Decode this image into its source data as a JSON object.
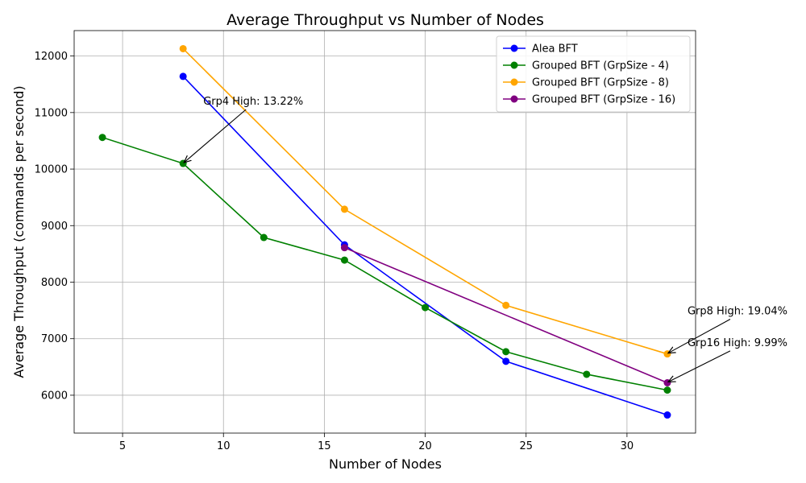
{
  "chart_data": {
    "type": "line",
    "title": "Average Throughput vs Number of Nodes",
    "xlabel": "Number of Nodes",
    "ylabel": "Average Throughput (commands per second)",
    "xlim": [
      2.6,
      33.4
    ],
    "ylim": [
      5330,
      12450
    ],
    "xticks": [
      5,
      10,
      15,
      20,
      25,
      30
    ],
    "yticks": [
      6000,
      7000,
      8000,
      9000,
      10000,
      11000,
      12000
    ],
    "grid": true,
    "legend_position": "top-right",
    "series": [
      {
        "name": "Alea BFT",
        "color": "#0000ff",
        "x": [
          8,
          16,
          24,
          32
        ],
        "y": [
          11640,
          8660,
          6600,
          5650
        ]
      },
      {
        "name": "Grouped BFT (GrpSize - 4)",
        "color": "#008000",
        "x": [
          4,
          8,
          12,
          16,
          20,
          24,
          28,
          32
        ],
        "y": [
          10560,
          10100,
          8790,
          8390,
          7550,
          6770,
          6370,
          6090
        ]
      },
      {
        "name": "Grouped BFT (GrpSize - 8)",
        "color": "#ffa500",
        "x": [
          8,
          16,
          24,
          32
        ],
        "y": [
          12130,
          9290,
          7590,
          6730
        ]
      },
      {
        "name": "Grouped BFT (GrpSize - 16)",
        "color": "#800080",
        "x": [
          16,
          32
        ],
        "y": [
          8610,
          6220
        ]
      }
    ],
    "annotations": [
      {
        "text": "Grp4 High: 13.22%",
        "point": [
          8,
          10100
        ],
        "text_at": [
          9,
          11140
        ]
      },
      {
        "text": "Grp8 High: 19.04%",
        "point": [
          32,
          6730
        ],
        "text_at": [
          33,
          7430
        ]
      },
      {
        "text": "Grp16 High: 9.99%",
        "point": [
          32,
          6220
        ],
        "text_at": [
          33,
          6870
        ]
      }
    ]
  }
}
